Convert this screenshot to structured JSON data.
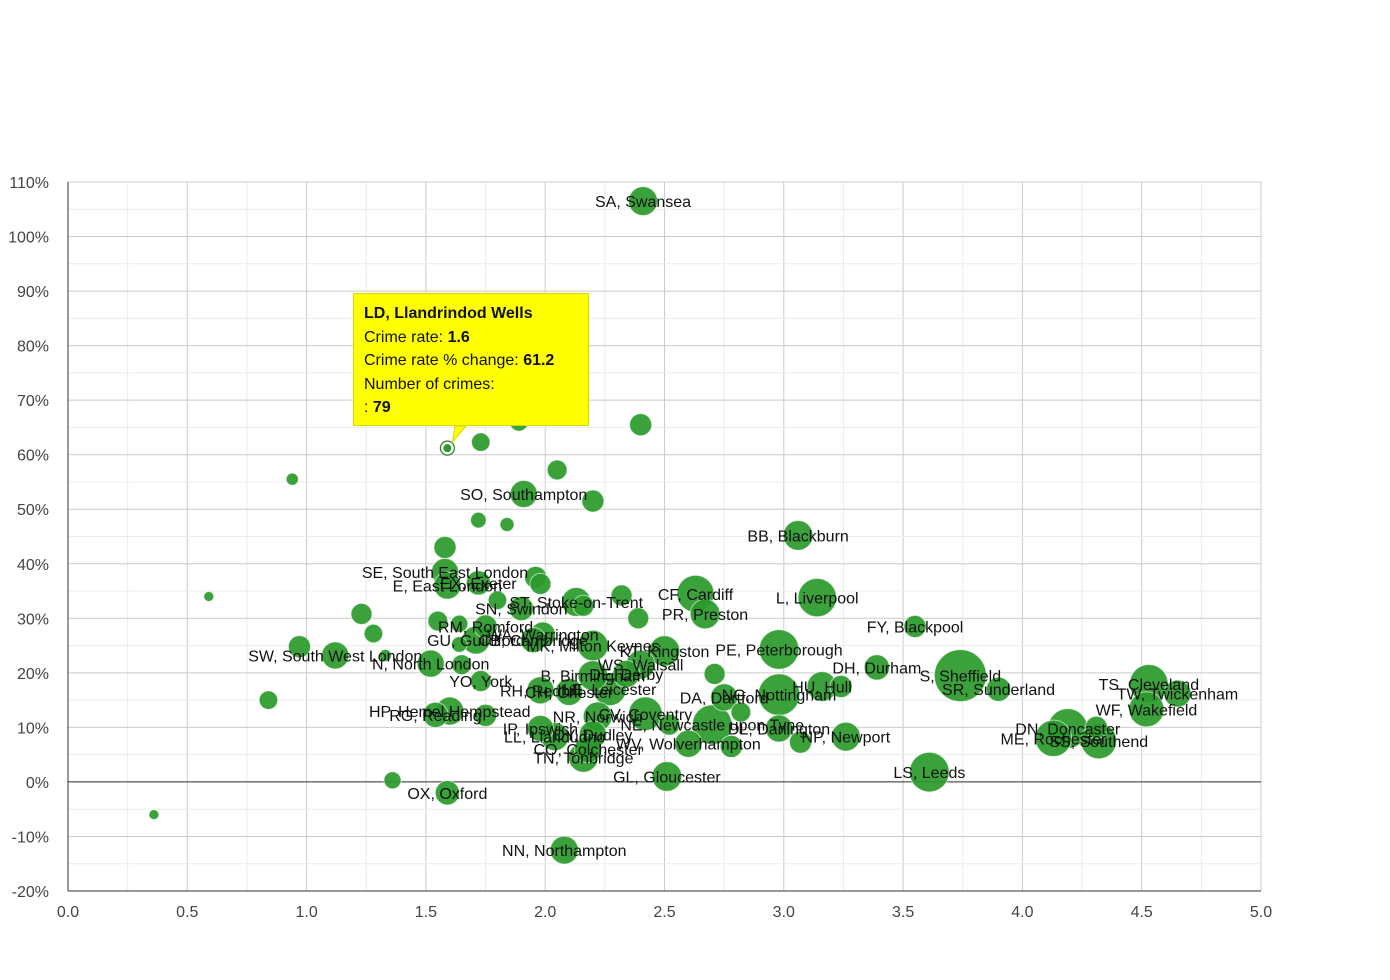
{
  "chart_data": {
    "type": "scatter",
    "title": "",
    "xlabel": "",
    "ylabel": "",
    "xlim": [
      0,
      5
    ],
    "ylim": [
      -20,
      110
    ],
    "x_ticks": [
      "0.0",
      "0.5",
      "1.0",
      "1.5",
      "2.0",
      "2.5",
      "3.0",
      "3.5",
      "4.0",
      "4.5",
      "5.0"
    ],
    "y_ticks": [
      "-20%",
      "-10%",
      "0%",
      "10%",
      "20%",
      "30%",
      "40%",
      "50%",
      "60%",
      "70%",
      "80%",
      "90%",
      "100%",
      "110%"
    ],
    "x_tick_values": [
      0,
      0.5,
      1,
      1.5,
      2,
      2.5,
      3,
      3.5,
      4,
      4.5,
      5
    ],
    "y_tick_values": [
      -20,
      -10,
      0,
      10,
      20,
      30,
      40,
      50,
      60,
      70,
      80,
      90,
      100,
      110
    ],
    "grid": true,
    "legend": "none",
    "bubble_color": "#2a9a2a",
    "points": [
      {
        "label": "SA, Swansea",
        "x": 2.41,
        "y": 106.5,
        "crimes": 1700
      },
      {
        "label": "",
        "x": 2.4,
        "y": 65.5,
        "crimes": 1000
      },
      {
        "label": "",
        "x": 1.89,
        "y": 66,
        "crimes": 700
      },
      {
        "label": "",
        "x": 1.73,
        "y": 62.3,
        "crimes": 700
      },
      {
        "label": "LD, Llandrindod Wells",
        "x": 1.59,
        "y": 61.2,
        "crimes": 79
      },
      {
        "label": "",
        "x": 0.94,
        "y": 55.5,
        "crimes": 300
      },
      {
        "label": "",
        "x": 2.05,
        "y": 57.2,
        "crimes": 800
      },
      {
        "label": "SO, Southampton",
        "x": 1.91,
        "y": 52.8,
        "crimes": 1500
      },
      {
        "label": "",
        "x": 2.2,
        "y": 51.5,
        "crimes": 1000
      },
      {
        "label": "",
        "x": 1.72,
        "y": 48,
        "crimes": 500
      },
      {
        "label": "",
        "x": 1.84,
        "y": 47.2,
        "crimes": 400
      },
      {
        "label": "BB, Blackburn",
        "x": 3.06,
        "y": 45.2,
        "crimes": 1800
      },
      {
        "label": "",
        "x": 1.58,
        "y": 43,
        "crimes": 1000
      },
      {
        "label": "SE, South East London",
        "x": 1.58,
        "y": 38.5,
        "crimes": 1500
      },
      {
        "label": "",
        "x": 1.96,
        "y": 37.5,
        "crimes": 1000
      },
      {
        "label": "E, East London",
        "x": 1.59,
        "y": 36,
        "crimes": 1500
      },
      {
        "label": "EX, Exeter",
        "x": 1.72,
        "y": 36.5,
        "crimes": 1200
      },
      {
        "label": "",
        "x": 1.98,
        "y": 36.3,
        "crimes": 900
      },
      {
        "label": "",
        "x": 0.59,
        "y": 34,
        "crimes": 200
      },
      {
        "label": "",
        "x": 2.32,
        "y": 34.2,
        "crimes": 900
      },
      {
        "label": "CF, Cardiff",
        "x": 2.63,
        "y": 34.5,
        "crimes": 2800
      },
      {
        "label": "L, Liverpool",
        "x": 3.14,
        "y": 33.8,
        "crimes": 3000
      },
      {
        "label": "",
        "x": 1.8,
        "y": 33.3,
        "crimes": 700
      },
      {
        "label": "ST, Stoke-on-Trent",
        "x": 2.13,
        "y": 33,
        "crimes": 1700
      },
      {
        "label": "SN, Swindon",
        "x": 1.9,
        "y": 31.8,
        "crimes": 1200
      },
      {
        "label": "",
        "x": 2.16,
        "y": 32.3,
        "crimes": 900
      },
      {
        "label": "",
        "x": 1.23,
        "y": 30.8,
        "crimes": 900
      },
      {
        "label": "PR, Preston",
        "x": 2.67,
        "y": 30.8,
        "crimes": 1800
      },
      {
        "label": "",
        "x": 2.39,
        "y": 30,
        "crimes": 900
      },
      {
        "label": "",
        "x": 1.55,
        "y": 29.5,
        "crimes": 800
      },
      {
        "label": "",
        "x": 1.64,
        "y": 29,
        "crimes": 600
      },
      {
        "label": "RM, Romford",
        "x": 1.75,
        "y": 28.5,
        "crimes": 1100
      },
      {
        "label": "FY, Blackpool",
        "x": 3.55,
        "y": 28.5,
        "crimes": 1000
      },
      {
        "label": "WA, Warrington",
        "x": 1.99,
        "y": 27,
        "crimes": 1300
      },
      {
        "label": "",
        "x": 1.28,
        "y": 27.2,
        "crimes": 700
      },
      {
        "label": "GU, Guildford",
        "x": 1.71,
        "y": 26,
        "crimes": 1600
      },
      {
        "label": "CB, Cambridge",
        "x": 1.95,
        "y": 26,
        "crimes": 1300
      },
      {
        "label": "",
        "x": 1.64,
        "y": 25.2,
        "crimes": 500
      },
      {
        "label": "MK, Milton Keynes",
        "x": 2.2,
        "y": 25,
        "crimes": 1900
      },
      {
        "label": "PE, Peterborough",
        "x": 2.98,
        "y": 24.3,
        "crimes": 3200
      },
      {
        "label": "KT, Kingston",
        "x": 2.5,
        "y": 24,
        "crimes": 1900
      },
      {
        "label": "",
        "x": 0.97,
        "y": 24.8,
        "crimes": 1000
      },
      {
        "label": "SW, South West London",
        "x": 1.12,
        "y": 23.2,
        "crimes": 1500
      },
      {
        "label": "",
        "x": 1.33,
        "y": 23.2,
        "crimes": 300
      },
      {
        "label": "N, North London",
        "x": 1.52,
        "y": 21.7,
        "crimes": 1500
      },
      {
        "label": "WS, Walsall",
        "x": 2.4,
        "y": 21.5,
        "crimes": 1700
      },
      {
        "label": "",
        "x": 1.65,
        "y": 21.5,
        "crimes": 800
      },
      {
        "label": "DH, Durham",
        "x": 3.39,
        "y": 21,
        "crimes": 1300
      },
      {
        "label": "S, Sheffield",
        "x": 3.74,
        "y": 19.5,
        "crimes": 5500
      },
      {
        "label": "B, Birmingham",
        "x": 2.2,
        "y": 19.5,
        "crimes": 1800
      },
      {
        "label": "DE, Derby",
        "x": 2.34,
        "y": 19.8,
        "crimes": 1500
      },
      {
        "label": "",
        "x": 2.71,
        "y": 19.8,
        "crimes": 900
      },
      {
        "label": "YO, York",
        "x": 1.73,
        "y": 18.5,
        "crimes": 900
      },
      {
        "label": "TS, Cleveland",
        "x": 4.53,
        "y": 18,
        "crimes": 3000
      },
      {
        "label": "SR, Sunderland",
        "x": 3.9,
        "y": 17,
        "crimes": 1200
      },
      {
        "label": "HU, Hull",
        "x": 3.16,
        "y": 17.5,
        "crimes": 1800
      },
      {
        "label": "",
        "x": 3.24,
        "y": 17.5,
        "crimes": 1000
      },
      {
        "label": "TW, Twickenham",
        "x": 4.65,
        "y": 16.2,
        "crimes": 1500
      },
      {
        "label": "RH, Redhill",
        "x": 1.98,
        "y": 16.8,
        "crimes": 1500
      },
      {
        "label": "LE, Leicester",
        "x": 2.27,
        "y": 17,
        "crimes": 2200
      },
      {
        "label": "NG, Nottingham",
        "x": 2.98,
        "y": 16,
        "crimes": 3500
      },
      {
        "label": "CH, Chester",
        "x": 2.1,
        "y": 16.5,
        "crimes": 1500
      },
      {
        "label": "DA, Dartford",
        "x": 2.75,
        "y": 15.5,
        "crimes": 1500
      },
      {
        "label": "",
        "x": 0.84,
        "y": 15,
        "crimes": 700
      },
      {
        "label": "WF, Wakefield",
        "x": 4.52,
        "y": 13.3,
        "crimes": 2500
      },
      {
        "label": "HP, Hemel Hempstead",
        "x": 1.6,
        "y": 13,
        "crimes": 1600
      },
      {
        "label": "RG, Reading",
        "x": 1.54,
        "y": 12.3,
        "crimes": 1300
      },
      {
        "label": "",
        "x": 1.75,
        "y": 12.2,
        "crimes": 1000
      },
      {
        "label": "CV, Coventry",
        "x": 2.42,
        "y": 12.5,
        "crimes": 2300
      },
      {
        "label": "NR, Norwich",
        "x": 2.22,
        "y": 12,
        "crimes": 1700
      },
      {
        "label": "",
        "x": 2.82,
        "y": 12.8,
        "crimes": 800
      },
      {
        "label": "NE, Newcastle upon Tyne",
        "x": 2.7,
        "y": 10.5,
        "crimes": 3200
      },
      {
        "label": "DL, Darlington",
        "x": 2.98,
        "y": 9.8,
        "crimes": 1500
      },
      {
        "label": "",
        "x": 2.52,
        "y": 10.5,
        "crimes": 900
      },
      {
        "label": "DN, Doncaster",
        "x": 4.19,
        "y": 9.8,
        "crimes": 3200
      },
      {
        "label": "IP, Ipswich",
        "x": 1.98,
        "y": 9.8,
        "crimes": 1400
      },
      {
        "label": "",
        "x": 4.31,
        "y": 10,
        "crimes": 1000
      },
      {
        "label": "LL, Llandudno",
        "x": 2.04,
        "y": 8.3,
        "crimes": 1600
      },
      {
        "label": "NP, Newport",
        "x": 3.26,
        "y": 8.3,
        "crimes": 1700
      },
      {
        "label": "DY, Dudley",
        "x": 2.2,
        "y": 8.7,
        "crimes": 1500
      },
      {
        "label": "ME, Rochester",
        "x": 4.13,
        "y": 8,
        "crimes": 2700
      },
      {
        "label": "SS, Southend",
        "x": 4.32,
        "y": 7.5,
        "crimes": 2600
      },
      {
        "label": "",
        "x": 3.07,
        "y": 7.3,
        "crimes": 1000
      },
      {
        "label": "WV, Wolverhampton",
        "x": 2.6,
        "y": 7,
        "crimes": 1500
      },
      {
        "label": "",
        "x": 2.78,
        "y": 6.5,
        "crimes": 1000
      },
      {
        "label": "CO, Colchester",
        "x": 2.18,
        "y": 6,
        "crimes": 1500
      },
      {
        "label": "TN, Tonbridge",
        "x": 2.16,
        "y": 4.5,
        "crimes": 1800
      },
      {
        "label": "LS, Leeds",
        "x": 3.61,
        "y": 1.8,
        "crimes": 3200
      },
      {
        "label": "GL, Gloucester",
        "x": 2.51,
        "y": 1,
        "crimes": 1800
      },
      {
        "label": "",
        "x": 1.36,
        "y": 0.3,
        "crimes": 600
      },
      {
        "label": "OX, Oxford",
        "x": 1.59,
        "y": -2,
        "crimes": 1200
      },
      {
        "label": "",
        "x": 0.36,
        "y": -6,
        "crimes": 200
      },
      {
        "label": "NN, Northampton",
        "x": 2.08,
        "y": -12.5,
        "crimes": 1600
      }
    ]
  },
  "tooltip": {
    "title": "LD, Llandrindod Wells",
    "line1_label": "Crime rate: ",
    "line1_value": "1.6",
    "line2_label": "Crime rate % change: ",
    "line2_value": "61.2",
    "line3_label": "Number of crimes:",
    "line4_label": ": ",
    "line4_value": "79"
  }
}
